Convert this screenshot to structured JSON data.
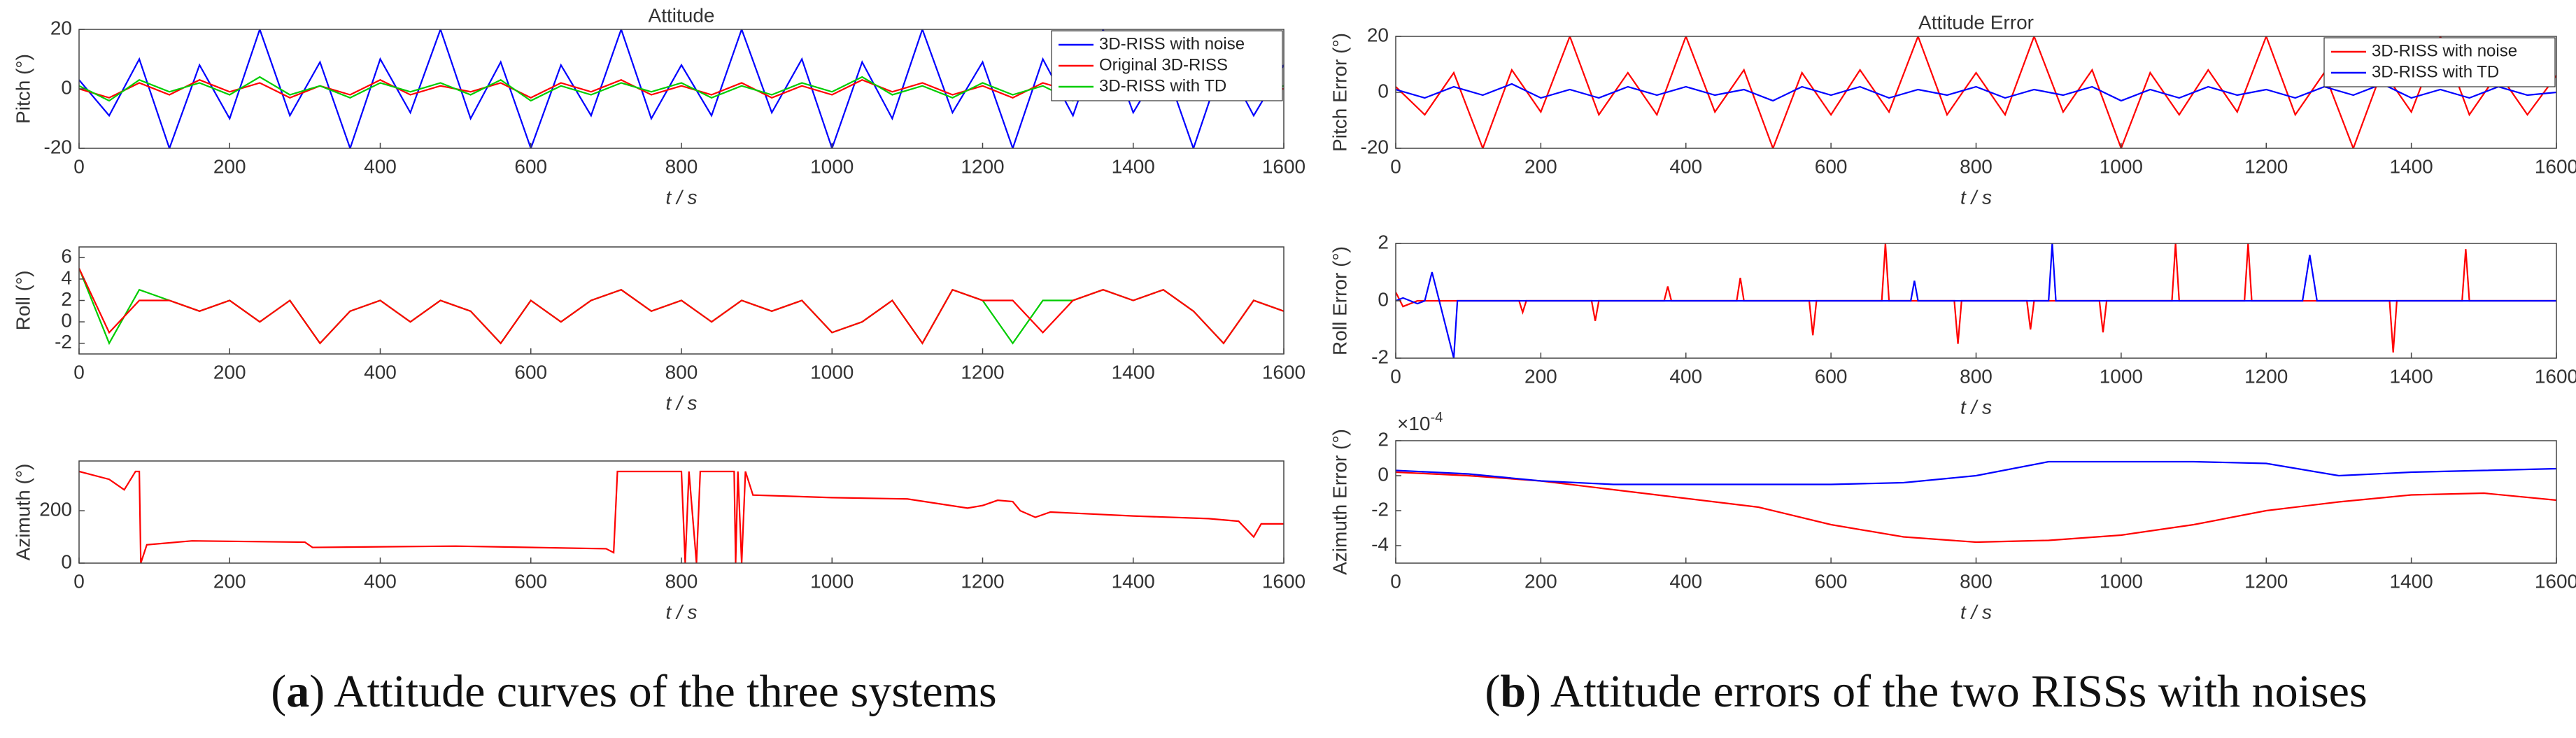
{
  "chart_data": [
    {
      "type": "line",
      "title": "Attitude",
      "ylabel": "Pitch (°)",
      "xlabel": "t / s",
      "xlim": [
        0,
        1600
      ],
      "xticks": [
        0,
        200,
        400,
        600,
        800,
        1000,
        1200,
        1400,
        1600
      ],
      "ylim": [
        -20,
        20
      ],
      "yticks": [
        -20,
        0,
        20
      ],
      "legend": "upper right",
      "x": [
        0,
        40,
        80,
        120,
        160,
        200,
        240,
        280,
        320,
        360,
        400,
        440,
        480,
        520,
        560,
        600,
        640,
        680,
        720,
        760,
        800,
        840,
        880,
        920,
        960,
        1000,
        1040,
        1080,
        1120,
        1160,
        1200,
        1240,
        1280,
        1320,
        1360,
        1400,
        1440,
        1480,
        1520,
        1560,
        1600
      ],
      "series": [
        {
          "name": "3D-RISS with noise",
          "color": "#0000ff",
          "values": [
            3,
            -9,
            10,
            -20,
            8,
            -10,
            20,
            -9,
            9,
            -20,
            10,
            -8,
            20,
            -10,
            9,
            -20,
            8,
            -9,
            20,
            -10,
            8,
            -9,
            20,
            -8,
            10,
            -20,
            9,
            -10,
            20,
            -8,
            9,
            -20,
            10,
            -9,
            20,
            -8,
            9,
            -20,
            10,
            -9,
            8
          ]
        },
        {
          "name": "Original 3D-RISS",
          "color": "#ff0000",
          "values": [
            0,
            -3,
            2,
            -2,
            3,
            -1,
            2,
            -3,
            1,
            -2,
            3,
            -2,
            1,
            -1,
            2,
            -3,
            2,
            -1,
            3,
            -2,
            1,
            -2,
            2,
            -3,
            1,
            -2,
            3,
            -1,
            2,
            -2,
            1,
            -3,
            2,
            -1,
            3,
            -2,
            1,
            -2,
            2,
            -1,
            0
          ]
        },
        {
          "name": "3D-RISS with TD",
          "color": "#00cc00",
          "values": [
            1,
            -4,
            3,
            -1,
            2,
            -2,
            4,
            -2,
            1,
            -3,
            2,
            -1,
            2,
            -2,
            3,
            -4,
            1,
            -2,
            2,
            -1,
            2,
            -3,
            1,
            -2,
            2,
            -1,
            4,
            -2,
            1,
            -3,
            2,
            -2,
            1,
            -4,
            2,
            -1,
            3,
            -2,
            1,
            -2,
            1
          ]
        }
      ]
    },
    {
      "type": "line",
      "ylabel": "Roll (°)",
      "xlabel": "t / s",
      "xlim": [
        0,
        1600
      ],
      "xticks": [
        0,
        200,
        400,
        600,
        800,
        1000,
        1200,
        1400,
        1600
      ],
      "ylim": [
        -3,
        7
      ],
      "yticks": [
        -2,
        0,
        2,
        4,
        6
      ],
      "x": [
        0,
        40,
        80,
        120,
        160,
        200,
        240,
        280,
        320,
        360,
        400,
        440,
        480,
        520,
        560,
        600,
        640,
        680,
        720,
        760,
        800,
        840,
        880,
        920,
        960,
        1000,
        1040,
        1080,
        1120,
        1160,
        1200,
        1240,
        1280,
        1320,
        1360,
        1400,
        1440,
        1480,
        1520,
        1560,
        1600
      ],
      "series": [
        {
          "color": "#00cc00",
          "values": [
            5,
            -2,
            3,
            2,
            1,
            2,
            0,
            2,
            -2,
            1,
            2,
            0,
            2,
            1,
            -2,
            2,
            0,
            2,
            3,
            1,
            2,
            0,
            2,
            1,
            2,
            -1,
            0,
            2,
            -2,
            3,
            2,
            -2,
            2,
            2,
            3,
            2,
            3,
            1,
            -2,
            2,
            1
          ]
        },
        {
          "color": "#ff0000",
          "values": [
            5,
            -1,
            2,
            2,
            1,
            2,
            0,
            2,
            -2,
            1,
            2,
            0,
            2,
            1,
            -2,
            2,
            0,
            2,
            3,
            1,
            2,
            0,
            2,
            1,
            2,
            -1,
            0,
            2,
            -2,
            3,
            2,
            2,
            -1,
            2,
            3,
            2,
            3,
            1,
            -2,
            2,
            1
          ]
        }
      ]
    },
    {
      "type": "line",
      "ylabel": "Azimuth (°)",
      "xlabel": "t / s",
      "xlim": [
        0,
        1600
      ],
      "xticks": [
        0,
        200,
        400,
        600,
        800,
        1000,
        1200,
        1400,
        1600
      ],
      "ylim": [
        0,
        390
      ],
      "yticks": [
        0,
        200
      ],
      "x": [
        0,
        40,
        60,
        75,
        80,
        82,
        90,
        150,
        300,
        310,
        500,
        700,
        710,
        715,
        800,
        805,
        810,
        820,
        825,
        870,
        872,
        875,
        880,
        885,
        895,
        1000,
        1100,
        1180,
        1200,
        1220,
        1240,
        1250,
        1270,
        1290,
        1400,
        1500,
        1540,
        1560,
        1570,
        1600
      ],
      "series": [
        {
          "color": "#ff0000",
          "values": [
            350,
            320,
            280,
            350,
            350,
            0,
            70,
            85,
            80,
            60,
            65,
            55,
            40,
            350,
            350,
            0,
            350,
            0,
            350,
            350,
            0,
            350,
            0,
            350,
            260,
            250,
            245,
            210,
            220,
            240,
            235,
            200,
            175,
            195,
            180,
            170,
            160,
            100,
            150,
            150
          ]
        }
      ]
    },
    {
      "type": "line",
      "title": "Attitude Error",
      "ylabel": "Pitch Error (°)",
      "xlabel": "t / s",
      "xlim": [
        0,
        1600
      ],
      "xticks": [
        0,
        200,
        400,
        600,
        800,
        1000,
        1200,
        1400,
        1600
      ],
      "ylim": [
        -20,
        20
      ],
      "yticks": [
        -20,
        0,
        20
      ],
      "legend": "upper right",
      "x": [
        0,
        40,
        80,
        120,
        160,
        200,
        240,
        280,
        320,
        360,
        400,
        440,
        480,
        520,
        560,
        600,
        640,
        680,
        720,
        760,
        800,
        840,
        880,
        920,
        960,
        1000,
        1040,
        1080,
        1120,
        1160,
        1200,
        1240,
        1280,
        1320,
        1360,
        1400,
        1440,
        1480,
        1520,
        1560,
        1600
      ],
      "series": [
        {
          "name": "3D-RISS with noise",
          "color": "#ff0000",
          "values": [
            2,
            -8,
            7,
            -20,
            8,
            -7,
            20,
            -8,
            7,
            -8,
            20,
            -7,
            8,
            -20,
            7,
            -8,
            8,
            -7,
            20,
            -8,
            7,
            -8,
            20,
            -7,
            8,
            -20,
            7,
            -8,
            8,
            -7,
            20,
            -8,
            7,
            -20,
            8,
            -7,
            20,
            -8,
            7,
            -8,
            6
          ]
        },
        {
          "name": "3D-RISS with TD",
          "color": "#0000ff",
          "values": [
            1,
            -2,
            2,
            -1,
            3,
            -2,
            1,
            -2,
            2,
            -1,
            2,
            -1,
            1,
            -3,
            2,
            -1,
            2,
            -2,
            1,
            -1,
            2,
            -2,
            1,
            -1,
            2,
            -3,
            1,
            -2,
            2,
            -1,
            1,
            -2,
            2,
            -1,
            3,
            -2,
            1,
            -2,
            2,
            -1,
            0
          ]
        }
      ]
    },
    {
      "type": "line",
      "ylabel": "Roll Error (°)",
      "xlabel": "t / s",
      "xlim": [
        0,
        1600
      ],
      "xticks": [
        0,
        200,
        400,
        600,
        800,
        1000,
        1200,
        1400,
        1600
      ],
      "ylim": [
        -2,
        2
      ],
      "yticks": [
        -2,
        0,
        2
      ],
      "x": [
        0,
        10,
        30,
        40,
        50,
        80,
        85,
        90,
        170,
        175,
        180,
        270,
        275,
        280,
        370,
        375,
        380,
        470,
        475,
        480,
        570,
        575,
        580,
        670,
        675,
        680,
        710,
        715,
        720,
        770,
        775,
        780,
        870,
        875,
        880,
        900,
        905,
        910,
        970,
        975,
        980,
        1070,
        1075,
        1080,
        1170,
        1175,
        1180,
        1250,
        1260,
        1270,
        1370,
        1375,
        1380,
        1470,
        1475,
        1480,
        1600
      ],
      "series": [
        {
          "color": "#ff0000",
          "values": [
            0.3,
            -0.2,
            0,
            0,
            0,
            0,
            0,
            0,
            0,
            -0.4,
            0,
            0,
            -0.7,
            0,
            0,
            0.5,
            0,
            0,
            0.8,
            0,
            0,
            -1.2,
            0,
            0,
            2,
            0,
            0,
            0,
            0,
            0,
            -1.5,
            0,
            0,
            -1,
            0,
            0,
            0,
            0,
            0,
            -1.1,
            0,
            0,
            2,
            0,
            0,
            2,
            0,
            0,
            0,
            0,
            0,
            -1.8,
            0,
            0,
            1.8,
            0,
            0
          ]
        },
        {
          "color": "#0000ff",
          "values": [
            0,
            0.1,
            -0.1,
            0,
            1,
            -2,
            0,
            0,
            0,
            0,
            0,
            0,
            0,
            0,
            0,
            0,
            0,
            0,
            0,
            0,
            0,
            0,
            0,
            0,
            0,
            0,
            0,
            0.7,
            0,
            0,
            0,
            0,
            0,
            0,
            0,
            0,
            2,
            0,
            0,
            0,
            0,
            0,
            0,
            0,
            0,
            0,
            0,
            0,
            1.6,
            0,
            0,
            0,
            0,
            0,
            0,
            0,
            0
          ]
        }
      ]
    },
    {
      "type": "line",
      "ylabel": "Azimuth Error (°)",
      "xlabel": "t / s",
      "xlim": [
        0,
        1600
      ],
      "xticks": [
        0,
        200,
        400,
        600,
        800,
        1000,
        1200,
        1400,
        1600
      ],
      "ylim": [
        -5,
        2
      ],
      "yticks": [
        -4,
        -2,
        0,
        2
      ],
      "y_offset_label": {
        "base": "×10",
        "exponent": "-4"
      },
      "x": [
        0,
        100,
        200,
        300,
        400,
        500,
        600,
        700,
        800,
        900,
        1000,
        1100,
        1200,
        1300,
        1400,
        1500,
        1600
      ],
      "series": [
        {
          "color": "#ff0000",
          "values": [
            0.2,
            0,
            -0.3,
            -0.8,
            -1.3,
            -1.8,
            -2.8,
            -3.5,
            -3.8,
            -3.7,
            -3.4,
            -2.8,
            -2,
            -1.5,
            -1.1,
            -1,
            -1.4
          ]
        },
        {
          "color": "#0000ff",
          "values": [
            0.3,
            0.1,
            -0.3,
            -0.5,
            -0.5,
            -0.5,
            -0.5,
            -0.4,
            0,
            0.8,
            0.8,
            0.8,
            0.7,
            0,
            0.2,
            0.3,
            0.4
          ]
        }
      ]
    }
  ],
  "captions": [
    {
      "parts": [
        "(",
        "a",
        ") Attitude curves of the three systems"
      ]
    },
    {
      "parts": [
        "(",
        "b",
        ") Attitude errors of the two RISSs with noises"
      ]
    }
  ]
}
